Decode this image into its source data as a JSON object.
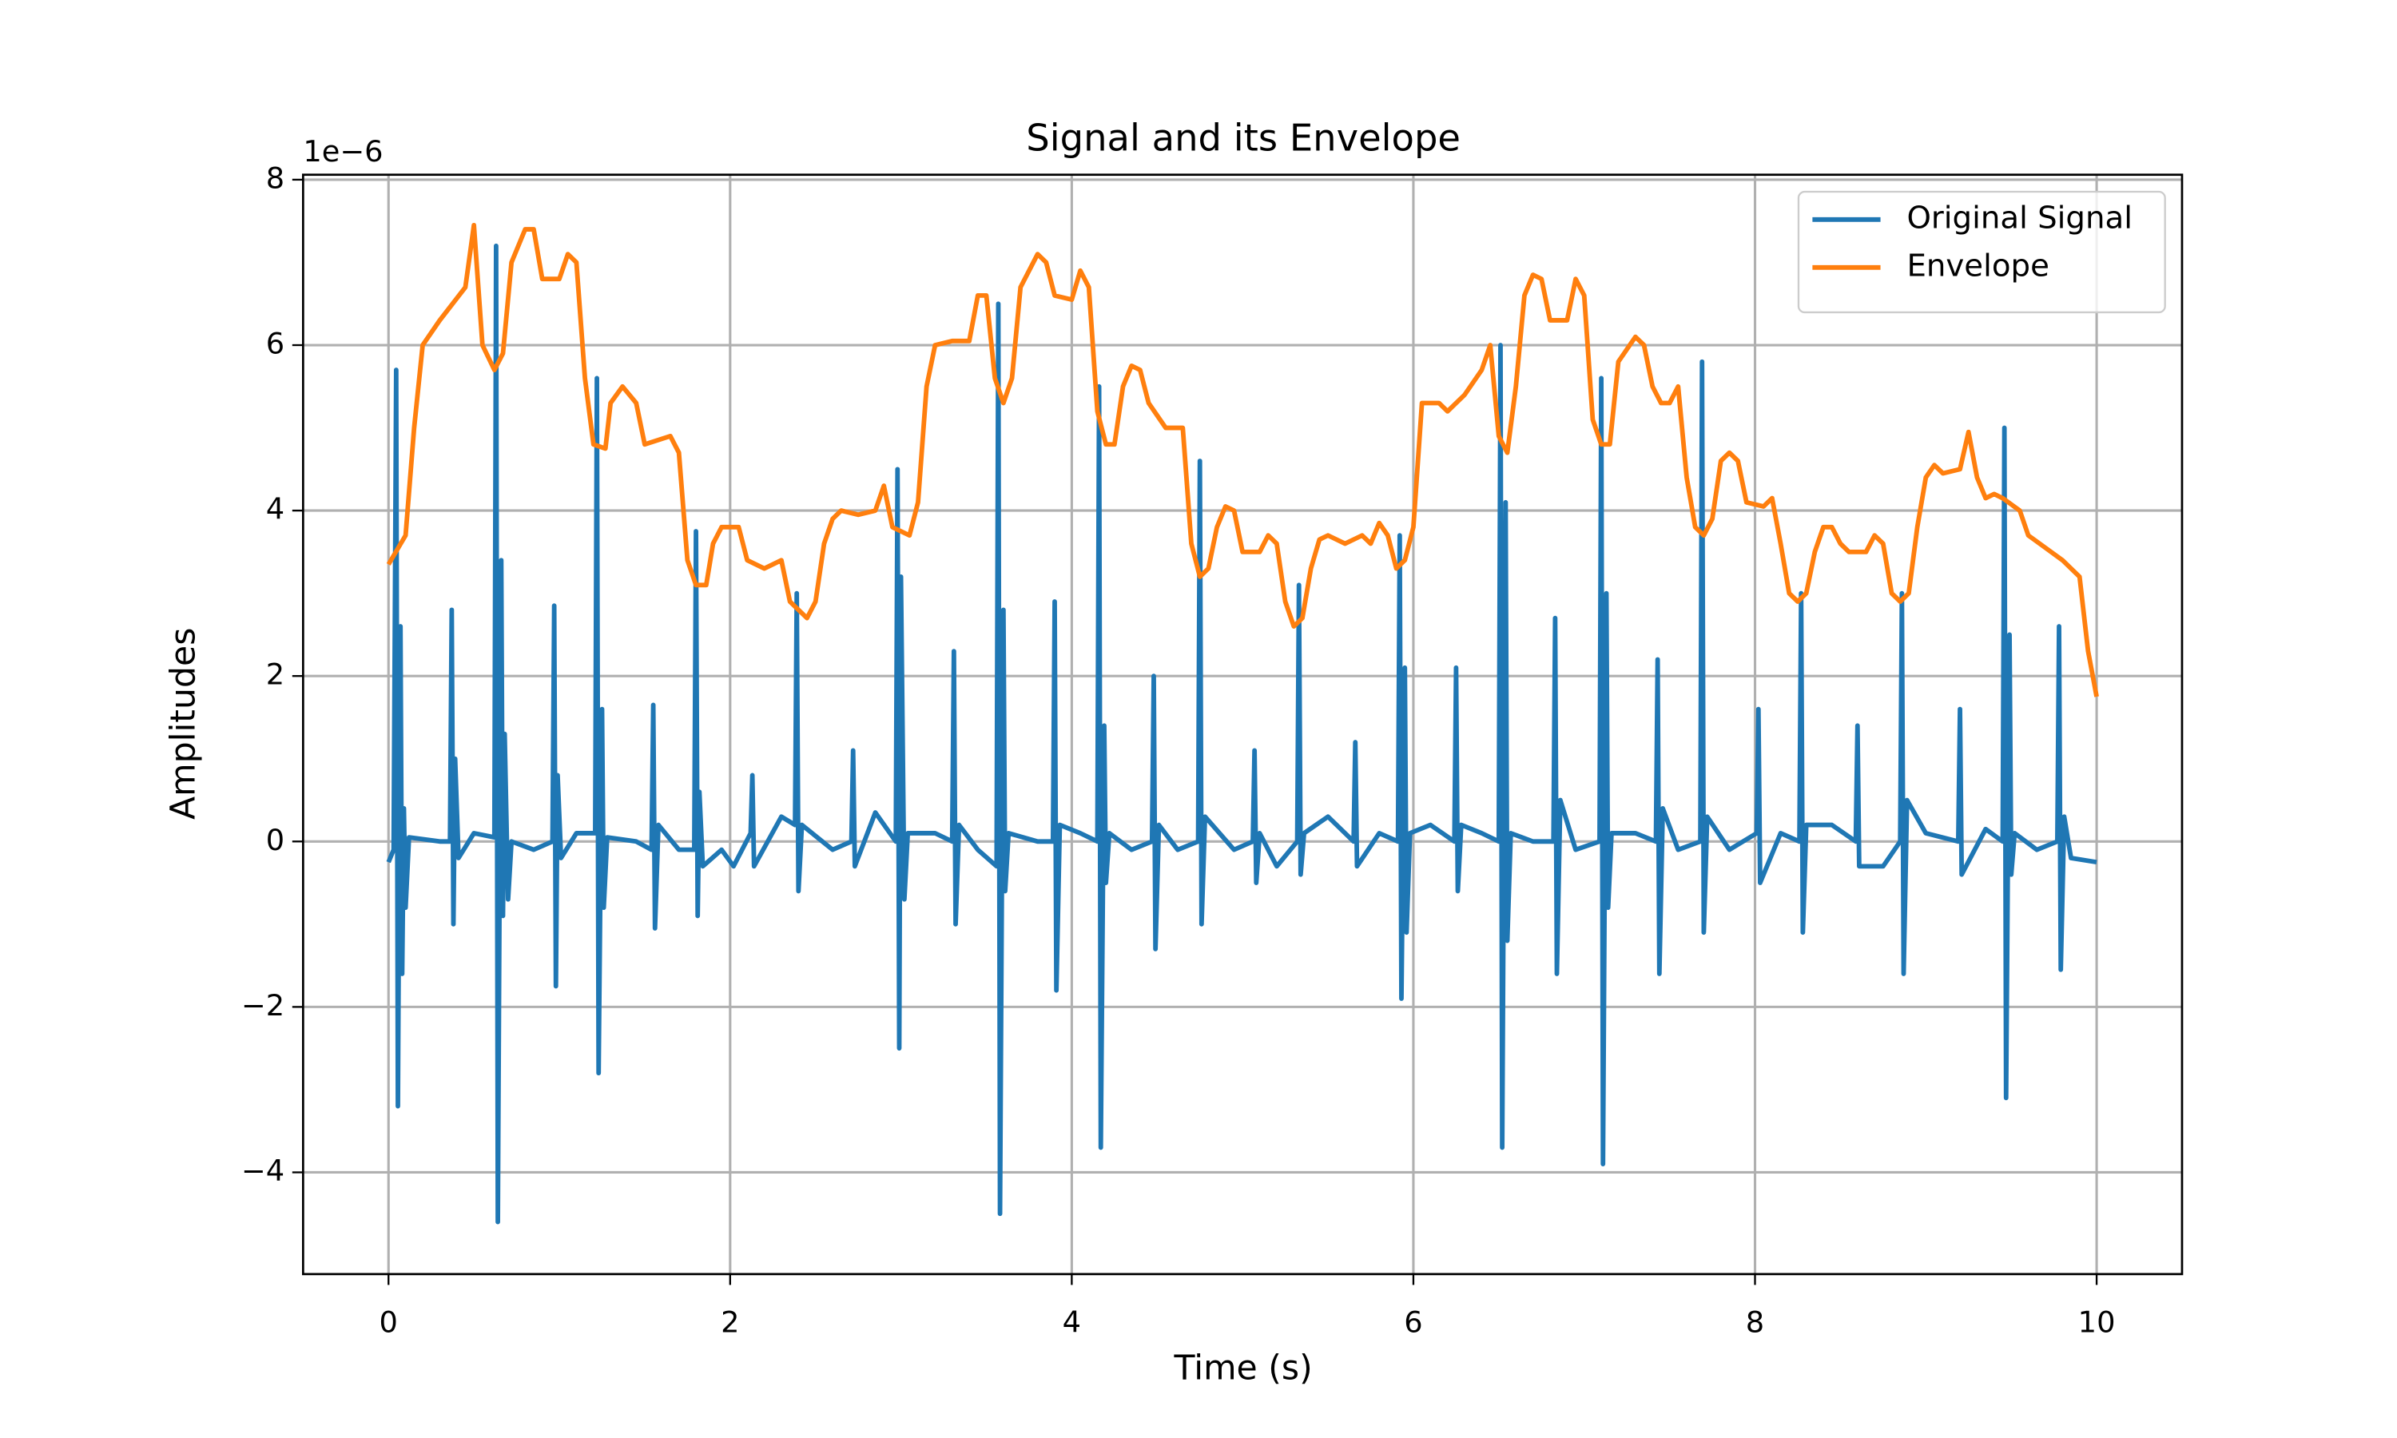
{
  "chart_data": {
    "type": "line",
    "title": "Signal and its Envelope",
    "x_label": "Time (s)",
    "y_label": "Amplitudes",
    "y_offset_label": "1e−6",
    "xlim": [
      -0.5,
      10.5
    ],
    "ylim": [
      -5.23,
      8.06
    ],
    "xticks": [
      0,
      2,
      4,
      6,
      8,
      10
    ],
    "yticks": [
      {
        "value": -4,
        "label": "−4"
      },
      {
        "value": -2,
        "label": "−2"
      },
      0,
      2,
      4,
      6,
      8
    ],
    "grid": true,
    "legend": "upper right",
    "series": [
      {
        "name": "Original Signal",
        "color": "#1f77b4",
        "x": [
          0,
          0.03,
          0.045,
          0.055,
          0.07,
          0.08,
          0.09,
          0.1,
          0.12,
          0.3,
          0.36,
          0.37,
          0.38,
          0.39,
          0.41,
          0.5,
          0.62,
          0.63,
          0.64,
          0.66,
          0.67,
          0.68,
          0.7,
          0.72,
          0.85,
          0.96,
          0.97,
          0.98,
          0.99,
          1.01,
          1.1,
          1.21,
          1.22,
          1.23,
          1.25,
          1.26,
          1.28,
          1.45,
          1.54,
          1.55,
          1.56,
          1.58,
          1.7,
          1.79,
          1.8,
          1.81,
          1.82,
          1.84,
          1.95,
          2.02,
          2.12,
          2.13,
          2.14,
          2.3,
          2.38,
          2.39,
          2.4,
          2.42,
          2.6,
          2.71,
          2.72,
          2.73,
          2.85,
          2.97,
          2.98,
          2.99,
          3.0,
          3.02,
          3.04,
          3.2,
          3.3,
          3.31,
          3.32,
          3.34,
          3.45,
          3.56,
          3.57,
          3.58,
          3.6,
          3.61,
          3.63,
          3.8,
          3.89,
          3.9,
          3.91,
          3.93,
          4.05,
          4.15,
          4.16,
          4.17,
          4.19,
          4.2,
          4.22,
          4.35,
          4.47,
          4.48,
          4.49,
          4.51,
          4.62,
          4.74,
          4.75,
          4.76,
          4.78,
          4.95,
          5.06,
          5.07,
          5.08,
          5.1,
          5.2,
          5.32,
          5.33,
          5.34,
          5.36,
          5.5,
          5.65,
          5.66,
          5.67,
          5.8,
          5.91,
          5.92,
          5.93,
          5.95,
          5.96,
          5.98,
          6.1,
          6.24,
          6.25,
          6.26,
          6.28,
          6.4,
          6.5,
          6.51,
          6.52,
          6.54,
          6.55,
          6.57,
          6.7,
          6.82,
          6.83,
          6.84,
          6.86,
          6.95,
          7.09,
          7.1,
          7.11,
          7.13,
          7.14,
          7.16,
          7.3,
          7.42,
          7.43,
          7.44,
          7.46,
          7.55,
          7.68,
          7.69,
          7.7,
          7.72,
          7.85,
          8.01,
          8.02,
          8.03,
          8.15,
          8.26,
          8.27,
          8.28,
          8.3,
          8.45,
          8.59,
          8.6,
          8.61,
          8.75,
          8.85,
          8.86,
          8.87,
          8.89,
          9.0,
          9.19,
          9.2,
          9.21,
          9.35,
          9.45,
          9.46,
          9.47,
          9.49,
          9.5,
          9.52,
          9.65,
          9.77,
          9.78,
          9.79,
          9.81,
          9.85,
          10
        ],
        "values": [
          -0.25,
          -0.1,
          5.7,
          -3.2,
          2.6,
          -1.6,
          0.4,
          -0.8,
          0.05,
          0,
          0,
          2.8,
          -1.0,
          1.0,
          -0.2,
          0.1,
          0.05,
          7.2,
          -4.6,
          3.4,
          -0.9,
          1.3,
          -0.7,
          0,
          -0.1,
          0,
          2.85,
          -1.75,
          0.8,
          -0.2,
          0.1,
          0.1,
          5.6,
          -2.8,
          1.6,
          -0.8,
          0.05,
          0,
          -0.1,
          1.65,
          -1.05,
          0.2,
          -0.1,
          -0.1,
          3.75,
          -0.9,
          0.6,
          -0.3,
          -0.1,
          -0.3,
          0.1,
          0.8,
          -0.3,
          0.3,
          0.2,
          3.0,
          -0.6,
          0.2,
          -0.1,
          0,
          1.1,
          -0.3,
          0.35,
          0,
          4.5,
          -2.5,
          3.2,
          -0.7,
          0.1,
          0.1,
          0,
          2.3,
          -1.0,
          0.2,
          -0.1,
          -0.3,
          6.5,
          -4.5,
          2.8,
          -0.6,
          0.1,
          0,
          0,
          2.9,
          -1.8,
          0.2,
          0.1,
          0,
          5.5,
          -3.7,
          1.4,
          -0.5,
          0.1,
          -0.1,
          0,
          2.0,
          -1.3,
          0.2,
          -0.1,
          0,
          4.6,
          -1.0,
          0.3,
          -0.1,
          0,
          1.1,
          -0.5,
          0.1,
          -0.3,
          0,
          3.1,
          -0.4,
          0.1,
          0.3,
          0,
          1.2,
          -0.3,
          0.1,
          0,
          3.7,
          -1.9,
          2.1,
          -1.1,
          0.1,
          0.2,
          0,
          2.1,
          -0.6,
          0.2,
          0.1,
          0,
          6.0,
          -3.7,
          4.1,
          -1.2,
          0.1,
          0,
          0,
          2.7,
          -1.6,
          0.5,
          -0.1,
          0,
          5.6,
          -3.9,
          3.0,
          -0.8,
          0.1,
          0.1,
          0,
          2.2,
          -1.6,
          0.4,
          -0.1,
          0,
          5.8,
          -1.1,
          0.3,
          -0.1,
          0.1,
          1.6,
          -0.5,
          0.1,
          0,
          3.0,
          -1.1,
          0.2,
          0.2,
          0,
          1.4,
          -0.3,
          -0.3,
          0,
          3.0,
          -1.6,
          0.5,
          0.1,
          0,
          1.6,
          -0.4,
          0.15,
          0,
          5.0,
          -3.1,
          2.5,
          -0.4,
          0.1,
          -0.1,
          0,
          2.6,
          -1.55,
          0.3,
          -0.2,
          -0.25
        ]
      },
      {
        "name": "Envelope",
        "color": "#ff7f0e",
        "x": [
          0,
          0.1,
          0.15,
          0.2,
          0.3,
          0.45,
          0.5,
          0.55,
          0.62,
          0.67,
          0.72,
          0.8,
          0.85,
          0.9,
          1.0,
          1.05,
          1.1,
          1.15,
          1.2,
          1.27,
          1.3,
          1.37,
          1.45,
          1.5,
          1.65,
          1.7,
          1.75,
          1.8,
          1.86,
          1.9,
          1.95,
          2.05,
          2.1,
          2.2,
          2.3,
          2.35,
          2.45,
          2.5,
          2.55,
          2.6,
          2.65,
          2.75,
          2.85,
          2.9,
          2.95,
          3.05,
          3.1,
          3.15,
          3.2,
          3.3,
          3.4,
          3.45,
          3.5,
          3.55,
          3.6,
          3.65,
          3.7,
          3.8,
          3.85,
          3.9,
          4.0,
          4.05,
          4.1,
          4.15,
          4.2,
          4.25,
          4.3,
          4.35,
          4.4,
          4.45,
          4.55,
          4.65,
          4.7,
          4.75,
          4.8,
          4.85,
          4.9,
          4.95,
          5.0,
          5.1,
          5.15,
          5.2,
          5.25,
          5.3,
          5.35,
          5.4,
          5.45,
          5.5,
          5.6,
          5.7,
          5.75,
          5.8,
          5.85,
          5.9,
          5.95,
          6.0,
          6.05,
          6.15,
          6.2,
          6.3,
          6.4,
          6.45,
          6.5,
          6.55,
          6.6,
          6.65,
          6.7,
          6.75,
          6.8,
          6.9,
          6.95,
          7.0,
          7.05,
          7.1,
          7.15,
          7.2,
          7.3,
          7.35,
          7.4,
          7.45,
          7.5,
          7.55,
          7.6,
          7.65,
          7.7,
          7.75,
          7.8,
          7.85,
          7.9,
          7.95,
          8.05,
          8.1,
          8.15,
          8.2,
          8.25,
          8.3,
          8.35,
          8.4,
          8.45,
          8.5,
          8.55,
          8.65,
          8.7,
          8.75,
          8.8,
          8.85,
          8.9,
          8.95,
          9.0,
          9.05,
          9.1,
          9.2,
          9.25,
          9.3,
          9.35,
          9.4,
          9.45,
          9.55,
          9.6,
          9.7,
          9.8,
          9.9,
          9.95,
          10
        ],
        "values": [
          3.35,
          3.7,
          5.0,
          6.0,
          6.3,
          6.7,
          7.45,
          6.0,
          5.7,
          5.9,
          7.0,
          7.4,
          7.4,
          6.8,
          6.8,
          7.1,
          7.0,
          5.6,
          4.8,
          4.75,
          5.3,
          5.5,
          5.3,
          4.8,
          4.9,
          4.7,
          3.4,
          3.1,
          3.1,
          3.6,
          3.8,
          3.8,
          3.4,
          3.3,
          3.4,
          2.9,
          2.7,
          2.9,
          3.6,
          3.9,
          4.0,
          3.95,
          4.0,
          4.3,
          3.8,
          3.7,
          4.1,
          5.5,
          6.0,
          6.05,
          6.05,
          6.6,
          6.6,
          5.6,
          5.3,
          5.6,
          6.7,
          7.1,
          7.0,
          6.6,
          6.55,
          6.9,
          6.7,
          5.2,
          4.8,
          4.8,
          5.5,
          5.75,
          5.7,
          5.3,
          5.0,
          5.0,
          3.6,
          3.2,
          3.3,
          3.8,
          4.05,
          4.0,
          3.5,
          3.5,
          3.7,
          3.6,
          2.9,
          2.6,
          2.7,
          3.3,
          3.65,
          3.7,
          3.6,
          3.7,
          3.6,
          3.85,
          3.7,
          3.3,
          3.4,
          3.8,
          5.3,
          5.3,
          5.2,
          5.4,
          5.7,
          6.0,
          4.9,
          4.7,
          5.5,
          6.6,
          6.85,
          6.8,
          6.3,
          6.3,
          6.8,
          6.6,
          5.1,
          4.8,
          4.8,
          5.8,
          6.1,
          6.0,
          5.5,
          5.3,
          5.3,
          5.5,
          4.4,
          3.8,
          3.7,
          3.9,
          4.6,
          4.7,
          4.6,
          4.1,
          4.05,
          4.15,
          3.6,
          3.0,
          2.9,
          3.0,
          3.5,
          3.8,
          3.8,
          3.6,
          3.5,
          3.5,
          3.7,
          3.6,
          3.0,
          2.9,
          3.0,
          3.8,
          4.4,
          4.55,
          4.45,
          4.5,
          4.95,
          4.4,
          4.15,
          4.2,
          4.15,
          4.0,
          3.7,
          3.55,
          3.4,
          3.2,
          2.3,
          1.75
        ]
      }
    ]
  }
}
